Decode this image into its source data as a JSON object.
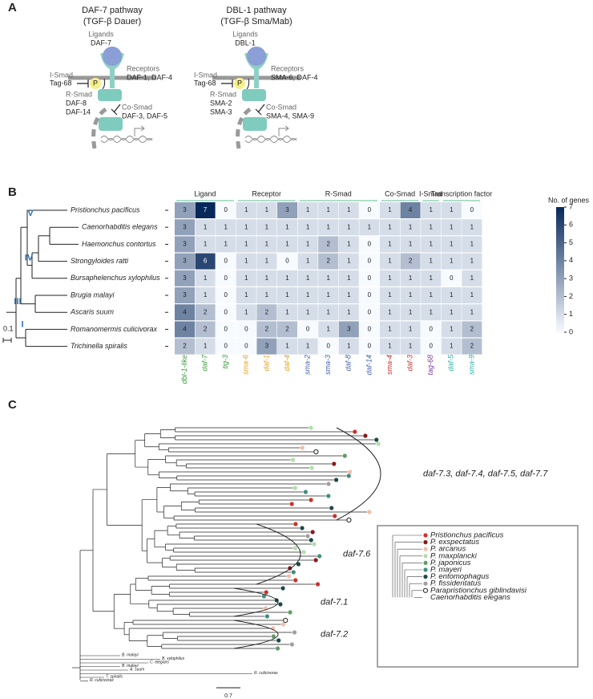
{
  "a": {
    "label": "A",
    "pathways": [
      {
        "title": "DAF-7 pathway",
        "subtitle": "(TGF-β Dauer)",
        "ligand_label": "Ligands",
        "ligand": "DAF-7",
        "receptor_label": "Receptors",
        "receptors": "DAF-1, DAF-4",
        "ismad_label": "I-Smad",
        "ismad": "Tag-68",
        "phospho": "P",
        "rsmad_label": "R-Smad",
        "rsmad": [
          "DAF-8",
          "DAF-14"
        ],
        "cosmad_label": "Co-Smad",
        "cosmad": "DAF-3, DAF-5"
      },
      {
        "title": "DBL-1 pathway",
        "subtitle": "(TGF-β Sma/Mab)",
        "ligand_label": "Ligands",
        "ligand": "DBL-1",
        "receptor_label": "Receptors",
        "receptors": "SMA-6, DAF-4",
        "ismad_label": "I-Smad",
        "ismad": "Tag-68",
        "phospho": "P",
        "rsmad_label": "R-Smad",
        "rsmad": [
          "SMA-2",
          "SMA-3"
        ],
        "cosmad_label": "Co-Smad",
        "cosmad": "SMA-4, SMA-9"
      }
    ]
  },
  "b": {
    "label": "B",
    "species": [
      "Pristionchus pacificus",
      "Caenorhabditis elegans",
      "Haemonchus contortus",
      "Strongyloides ratti",
      "Bursaphelenchus xylophilus",
      "Brugia malayi",
      "Ascaris suum",
      "Romanomermis culicivorax",
      "Trichinella spiralis"
    ],
    "clades": [
      "V",
      "IV",
      "III",
      "I"
    ],
    "scale": "0.1",
    "groups": [
      {
        "name": "Ligand",
        "color": "#3a9a3a",
        "genes": [
          "dbl-1-like",
          "daf-7",
          "tig-3"
        ]
      },
      {
        "name": "Receptor",
        "color": "#e0a020",
        "genes": [
          "sma-6",
          "daf-1",
          "daf-4"
        ]
      },
      {
        "name": "R-Smad",
        "color": "#4060b0",
        "genes": [
          "sma-2",
          "sma-3",
          "daf-8",
          "daf-14"
        ]
      },
      {
        "name": "Co-Smad",
        "color": "#c83030",
        "genes": [
          "sma-4",
          "daf-3"
        ]
      },
      {
        "name": "I-Smad",
        "color": "#8040a0",
        "genes": [
          "tag-68"
        ]
      },
      {
        "name": "Transcription factor",
        "color": "#20b0a8",
        "genes": [
          "daf-5",
          "sma-9"
        ]
      }
    ],
    "values": [
      [
        3,
        7,
        0,
        1,
        1,
        3,
        1,
        1,
        1,
        0,
        1,
        4,
        1,
        1,
        0
      ],
      [
        3,
        1,
        1,
        1,
        1,
        1,
        1,
        1,
        1,
        1,
        1,
        1,
        1,
        1,
        1
      ],
      [
        3,
        1,
        1,
        1,
        1,
        1,
        1,
        2,
        1,
        0,
        1,
        1,
        1,
        1,
        1
      ],
      [
        3,
        6,
        0,
        1,
        1,
        0,
        1,
        2,
        1,
        0,
        1,
        2,
        1,
        1,
        1
      ],
      [
        3,
        1,
        0,
        1,
        1,
        1,
        1,
        1,
        1,
        0,
        1,
        1,
        1,
        0,
        1
      ],
      [
        3,
        1,
        0,
        1,
        1,
        1,
        1,
        1,
        1,
        0,
        1,
        1,
        1,
        1,
        1
      ],
      [
        4,
        2,
        0,
        1,
        2,
        1,
        1,
        1,
        1,
        0,
        1,
        1,
        1,
        1,
        1
      ],
      [
        4,
        2,
        0,
        0,
        2,
        2,
        0,
        1,
        3,
        0,
        1,
        1,
        0,
        1,
        2
      ],
      [
        2,
        1,
        0,
        0,
        3,
        1,
        1,
        0,
        1,
        0,
        1,
        1,
        0,
        1,
        2
      ]
    ],
    "colorbar": {
      "title": "No. of genes",
      "lim": [
        0,
        7
      ],
      "ticks": [
        0,
        1,
        2,
        3,
        4,
        5,
        6,
        7
      ]
    }
  },
  "c": {
    "label": "C",
    "clusters": [
      "daf-7.3, daf-7.4, daf-7.5, daf-7.7",
      "daf-7.6",
      "daf-7.1",
      "daf-7.2"
    ],
    "outgroups": [
      "B. malayi",
      "B. xylophilus",
      "C. elegans",
      "B. malayi",
      "A. suum",
      "R. culicivorax",
      "T. spiralis",
      "R. culicivorax"
    ],
    "scale": "0.7",
    "legend": [
      {
        "name": "Pristionchus pacificus",
        "color": "#d03028"
      },
      {
        "name": "P. exspectatus",
        "color": "#8a1818"
      },
      {
        "name": "P. arcanus",
        "color": "#f4bca8"
      },
      {
        "name": "P. maxplancki",
        "color": "#b4dcae"
      },
      {
        "name": "P. japonicus",
        "color": "#5e9e62"
      },
      {
        "name": "P. mayeri",
        "color": "#3f8f80"
      },
      {
        "name": "P. entomophagus",
        "color": "#1c4848"
      },
      {
        "name": "P. fissidentatus",
        "color": "#a0a0a0"
      },
      {
        "name": "Parapristionchus giblindavisi",
        "color": "none"
      },
      {
        "name": "Caenorhabditis elegans",
        "color": null
      }
    ]
  }
}
